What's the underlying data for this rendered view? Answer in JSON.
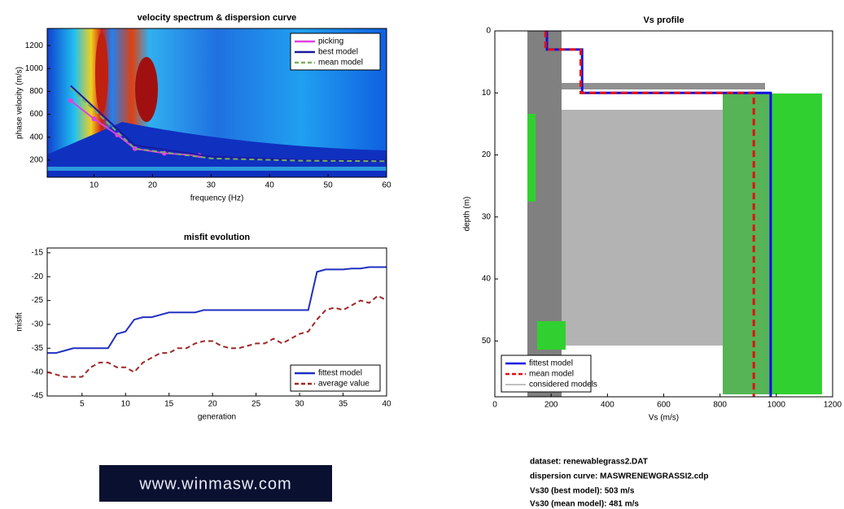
{
  "chart_data": [
    {
      "type": "line",
      "title": "velocity spectrum & dispersion curve",
      "x_label": "frequency (Hz)",
      "y_label": "phase velocity (m/s)",
      "xlim": [
        2,
        60
      ],
      "ylim": [
        50,
        1350
      ],
      "xticks": [
        10,
        20,
        30,
        40,
        50,
        60
      ],
      "yticks": [
        200,
        400,
        600,
        800,
        1000,
        1200
      ],
      "legend": "upper right",
      "series": [
        {
          "name": "picking",
          "color": "#e040e0",
          "marker": true,
          "x": [
            6,
            10,
            14,
            17,
            22,
            28
          ],
          "values": [
            720,
            560,
            420,
            300,
            260,
            240
          ]
        },
        {
          "name": "best model",
          "color": "#1a1aa0",
          "x": [
            6,
            17,
            30,
            45,
            60
          ],
          "values": [
            850,
            330,
            230,
            200,
            195
          ]
        },
        {
          "name": "mean model",
          "color": "#7ab060",
          "dashed": true,
          "x": [
            6,
            17,
            30,
            45,
            60
          ],
          "values": [
            830,
            300,
            215,
            195,
            190
          ]
        }
      ]
    },
    {
      "type": "line",
      "title": "misfit evolution",
      "x_label": "generation",
      "y_label": "misfit",
      "xlim": [
        1,
        40
      ],
      "ylim": [
        -45,
        -14
      ],
      "xticks": [
        5,
        10,
        15,
        20,
        25,
        30,
        35,
        40
      ],
      "yticks": [
        -45,
        -40,
        -35,
        -30,
        -25,
        -20,
        -15
      ],
      "legend": "lower right",
      "series": [
        {
          "name": "fittest model",
          "color": "#2030c0",
          "x": [
            1,
            2,
            3,
            4,
            5,
            6,
            7,
            8,
            9,
            10,
            11,
            12,
            13,
            14,
            15,
            16,
            17,
            18,
            19,
            20,
            21,
            22,
            23,
            24,
            25,
            26,
            27,
            28,
            29,
            30,
            31,
            32,
            33,
            34,
            35,
            36,
            37,
            38,
            39,
            40
          ],
          "values": [
            -36,
            -36,
            -35.5,
            -35,
            -35,
            -35,
            -35,
            -35,
            -32,
            -31.5,
            -29,
            -28.5,
            -28.5,
            -28,
            -27.5,
            -27.5,
            -27.5,
            -27.5,
            -27,
            -27,
            -27,
            -27,
            -27,
            -27,
            -27,
            -27,
            -27,
            -27,
            -27,
            -27,
            -27,
            -19,
            -18.5,
            -18.5,
            -18.5,
            -18.3,
            -18.3,
            -18,
            -18,
            -18
          ]
        },
        {
          "name": "average value",
          "color": "#a02828",
          "dashed": true,
          "x": [
            1,
            2,
            3,
            4,
            5,
            6,
            7,
            8,
            9,
            10,
            11,
            12,
            13,
            14,
            15,
            16,
            17,
            18,
            19,
            20,
            21,
            22,
            23,
            24,
            25,
            26,
            27,
            28,
            29,
            30,
            31,
            32,
            33,
            34,
            35,
            36,
            37,
            38,
            39,
            40
          ],
          "values": [
            -40,
            -40.5,
            -41,
            -41,
            -41,
            -39,
            -38,
            -38,
            -39,
            -39,
            -40,
            -38,
            -37,
            -36,
            -36,
            -35,
            -35,
            -34,
            -33.5,
            -33.5,
            -34.5,
            -35,
            -35,
            -34.5,
            -34,
            -34,
            -33,
            -34,
            -33,
            -32,
            -31.5,
            -29,
            -27,
            -26.5,
            -27,
            -26,
            -25,
            -25.5,
            -24,
            -25
          ]
        }
      ]
    },
    {
      "type": "profile",
      "title": "Vs profile",
      "x_label": "Vs (m/s)",
      "y_label": "depth (m)",
      "xlim": [
        0,
        1200
      ],
      "ylim": [
        0,
        59
      ],
      "y_reversed": true,
      "xticks": [
        0,
        200,
        400,
        600,
        800,
        1000,
        1200
      ],
      "yticks": [
        0,
        10,
        20,
        30,
        40,
        50
      ],
      "legend": "lower left",
      "series": [
        {
          "name": "fittest model",
          "color": "#1010e0",
          "depth": [
            0,
            3,
            3,
            10,
            10,
            59
          ],
          "values": [
            185,
            185,
            310,
            310,
            980,
            980
          ]
        },
        {
          "name": "mean model",
          "color": "#e01010",
          "dashed": true,
          "depth": [
            0,
            3,
            3,
            10,
            10,
            59
          ],
          "values": [
            180,
            180,
            305,
            305,
            920,
            920
          ]
        },
        {
          "name": "considered models",
          "color": "#808080"
        }
      ]
    }
  ],
  "info": [
    "dataset: renewablegrass2.DAT",
    "dispersion curve: MASWRENEWGRASSI2.cdp",
    "Vs30 (best model): 503 m/s",
    "Vs30 (mean model): 481 m/s"
  ],
  "logo": "www.winmasw.com"
}
